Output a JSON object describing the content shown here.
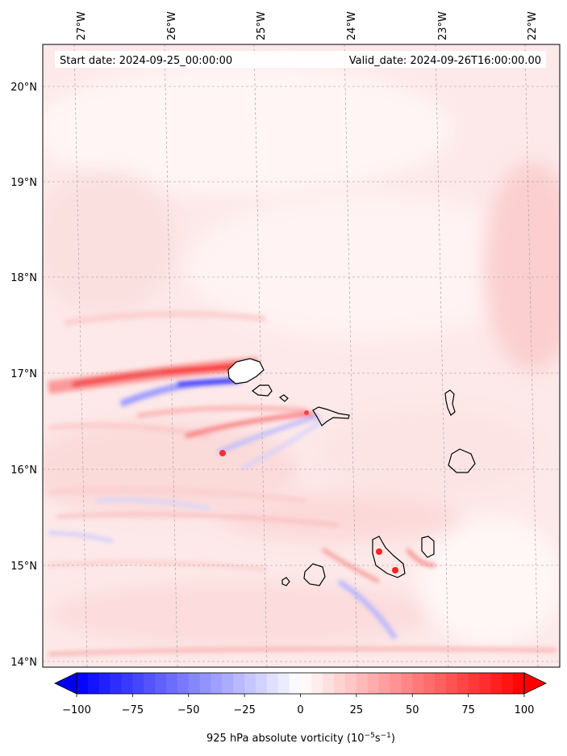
{
  "map": {
    "start_date_label": "Start date: 2024-09-25_00:00:00",
    "valid_date_label": "Valid_date: 2024-09-26T16:00:00.00",
    "field": "925 hPa absolute vorticity",
    "lon_ticks": [
      "27°W",
      "26°W",
      "25°W",
      "24°W",
      "23°W",
      "22°W"
    ],
    "lat_ticks": [
      "20°N",
      "19°N",
      "18°N",
      "17°N",
      "16°N",
      "15°N",
      "14°N"
    ],
    "gridlines": true,
    "colormap": "bwr",
    "colors": {
      "negative": "#0000ff",
      "zero": "#ffffff",
      "positive": "#ff0000"
    }
  },
  "colorbar": {
    "ticks": [
      "−100",
      "−75",
      "−50",
      "−25",
      "0",
      "25",
      "50",
      "75",
      "100"
    ],
    "range": [
      -100,
      100
    ],
    "extend": "both",
    "label_text": "925 hPa absolute vorticity (10",
    "label_exp1": "−5",
    "label_mid": "s",
    "label_exp2": "−1",
    "label_end": ")"
  }
}
